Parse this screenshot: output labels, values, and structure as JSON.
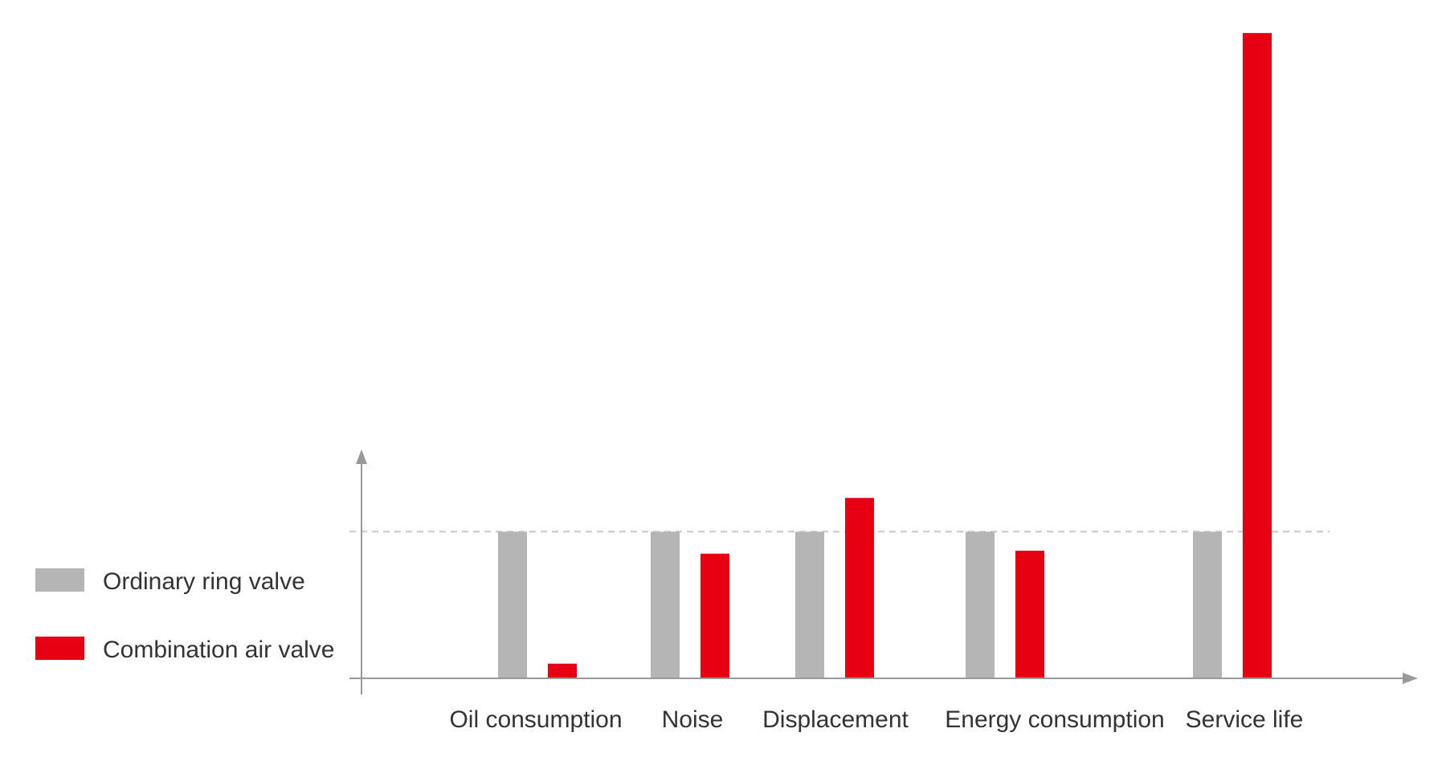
{
  "chart_data": {
    "type": "bar",
    "categories": [
      "Oil consumption",
      "Noise",
      "Displacement",
      "Energy consumption",
      "Service life"
    ],
    "series": [
      {
        "name": "Ordinary ring valve",
        "values": [
          100,
          100,
          100,
          100,
          100
        ],
        "color": "#b5b5b5"
      },
      {
        "name": "Combination air valve",
        "values": [
          10,
          85,
          123,
          87,
          440
        ],
        "color": "#e60012"
      }
    ],
    "reference_line": 100,
    "ylim": [
      0,
      445
    ],
    "axis_color": "#999999",
    "grid": false,
    "legend": "left",
    "title": "",
    "xlabel": "",
    "ylabel": ""
  }
}
